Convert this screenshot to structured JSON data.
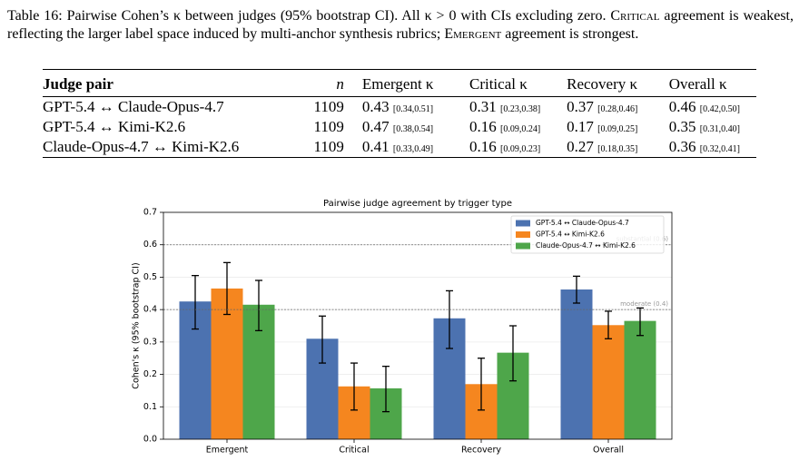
{
  "caption": {
    "parts": [
      "Table 16: Pairwise Cohen’s κ between judges (95% bootstrap CI). All κ > 0 with CIs excluding zero. ",
      "Critical",
      " agreement is weakest, reflecting the larger label space induced by multi-anchor synthesis rubrics; ",
      "Emergent",
      " agreement is strongest."
    ]
  },
  "table": {
    "header": [
      "Judge pair",
      "n",
      "Emergent κ",
      "Critical κ",
      "Recovery κ",
      "Overall κ"
    ],
    "rows": [
      {
        "pair": "GPT-5.4 ↔ Claude-Opus-4.7",
        "n": 1109,
        "cells": [
          {
            "value": 0.43,
            "ci": "[0.34,0.51]"
          },
          {
            "value": 0.31,
            "ci": "[0.23,0.38]"
          },
          {
            "value": 0.37,
            "ci": "[0.28,0.46]"
          },
          {
            "value": 0.46,
            "ci": "[0.42,0.50]"
          }
        ]
      },
      {
        "pair": "GPT-5.4 ↔ Kimi-K2.6",
        "n": 1109,
        "cells": [
          {
            "value": 0.47,
            "ci": "[0.38,0.54]"
          },
          {
            "value": 0.16,
            "ci": "[0.09,0.24]"
          },
          {
            "value": 0.17,
            "ci": "[0.09,0.25]"
          },
          {
            "value": 0.35,
            "ci": "[0.31,0.40]"
          }
        ]
      },
      {
        "pair": "Claude-Opus-4.7 ↔ Kimi-K2.6",
        "n": 1109,
        "cells": [
          {
            "value": 0.41,
            "ci": "[0.33,0.49]"
          },
          {
            "value": 0.16,
            "ci": "[0.09,0.23]"
          },
          {
            "value": 0.27,
            "ci": "[0.18,0.35]"
          },
          {
            "value": 0.36,
            "ci": "[0.32,0.41]"
          }
        ]
      }
    ]
  },
  "chart_data": {
    "type": "bar",
    "title": "Pairwise judge agreement by trigger type",
    "y_label": "Cohen's κ (95% bootstrap CI)",
    "categories": [
      "Emergent",
      "Critical",
      "Recovery",
      "Overall"
    ],
    "series": [
      {
        "name": "GPT-5.4 ↔ Claude-Opus-4.7",
        "color": "#4c72b0",
        "values": [
          0.425,
          0.31,
          0.373,
          0.462
        ],
        "ci_low": [
          0.34,
          0.235,
          0.28,
          0.42
        ],
        "ci_high": [
          0.505,
          0.38,
          0.458,
          0.503
        ]
      },
      {
        "name": "GPT-5.4 ↔ Kimi-K2.6",
        "color": "#f5861f",
        "values": [
          0.465,
          0.163,
          0.17,
          0.352
        ],
        "ci_low": [
          0.385,
          0.09,
          0.09,
          0.31
        ],
        "ci_high": [
          0.545,
          0.235,
          0.25,
          0.395
        ]
      },
      {
        "name": "Claude-Opus-4.7 ↔ Kimi-K2.6",
        "color": "#4ea64a",
        "values": [
          0.415,
          0.157,
          0.267,
          0.365
        ],
        "ci_low": [
          0.335,
          0.085,
          0.18,
          0.32
        ],
        "ci_high": [
          0.49,
          0.225,
          0.35,
          0.405
        ]
      }
    ],
    "reference_lines": [
      {
        "value": 0.6,
        "label": "substantial (0.6)"
      },
      {
        "value": 0.4,
        "label": "moderate (0.4)"
      }
    ],
    "ylim": [
      0,
      0.7
    ],
    "yticks": [
      {
        "value": 0,
        "label": "0.0"
      },
      0.1,
      0.2,
      0.3,
      0.4,
      0.5,
      0.6,
      0.7
    ],
    "grid": true,
    "legend": "upper-right"
  }
}
